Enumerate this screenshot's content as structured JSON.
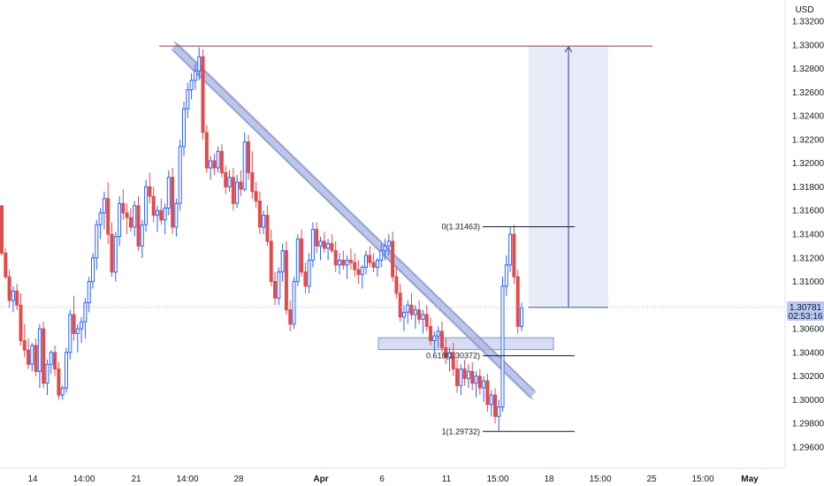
{
  "chart_data": {
    "type": "candlestick",
    "currency_label": "USD",
    "y_ticks": [
      "1.33200",
      "1.33000",
      "1.32800",
      "1.32600",
      "1.32400",
      "1.32200",
      "1.32000",
      "1.31800",
      "1.31600",
      "1.31400",
      "1.31200",
      "1.31000",
      "1.30800",
      "1.30600",
      "1.30400",
      "1.30200",
      "1.30000",
      "1.29800",
      "1.29600"
    ],
    "y_tick_values": [
      1.332,
      1.33,
      1.328,
      1.326,
      1.324,
      1.322,
      1.32,
      1.318,
      1.316,
      1.314,
      1.312,
      1.31,
      1.308,
      1.306,
      1.304,
      1.302,
      1.3,
      1.298,
      1.296
    ],
    "ylim": [
      1.2945,
      1.3345
    ],
    "x_ticks": [
      {
        "label": "14",
        "bold": false
      },
      {
        "label": "14:00",
        "bold": false
      },
      {
        "label": "21",
        "bold": false
      },
      {
        "label": "14:00",
        "bold": false
      },
      {
        "label": "28",
        "bold": false
      },
      {
        "label": "Apr",
        "bold": true
      },
      {
        "label": "6",
        "bold": false
      },
      {
        "label": "11",
        "bold": false
      },
      {
        "label": "15:00",
        "bold": false
      },
      {
        "label": "18",
        "bold": false
      },
      {
        "label": "15:00",
        "bold": false
      },
      {
        "label": "25",
        "bold": false
      },
      {
        "label": "15:00",
        "bold": false
      },
      {
        "label": "May",
        "bold": true
      }
    ],
    "current_price": "1.30781",
    "current_price_value": 1.30781,
    "countdown": "02:53:16",
    "resistance_level": 1.3299,
    "fib_levels": [
      {
        "label": "0(1.31463)",
        "value": 1.31463
      },
      {
        "label": "0.618(1.30372)",
        "value": 1.30372
      },
      {
        "label": "1(1.29732)",
        "value": 1.29732
      }
    ],
    "support_zone": [
      1.30425,
      1.30525
    ],
    "target_zone": [
      1.30781,
      1.3299
    ],
    "trendline": {
      "from": 1.3299,
      "to": 1.3004
    },
    "colors": {
      "up": "#2962ff",
      "down": "#e14b4b",
      "resistance": "#8e3b5f",
      "zone_fill": "#c5cfee",
      "target_fill": "#e5eaf8",
      "trendline": "#a8b3e0",
      "current_badge": "#b9c8f5"
    }
  }
}
